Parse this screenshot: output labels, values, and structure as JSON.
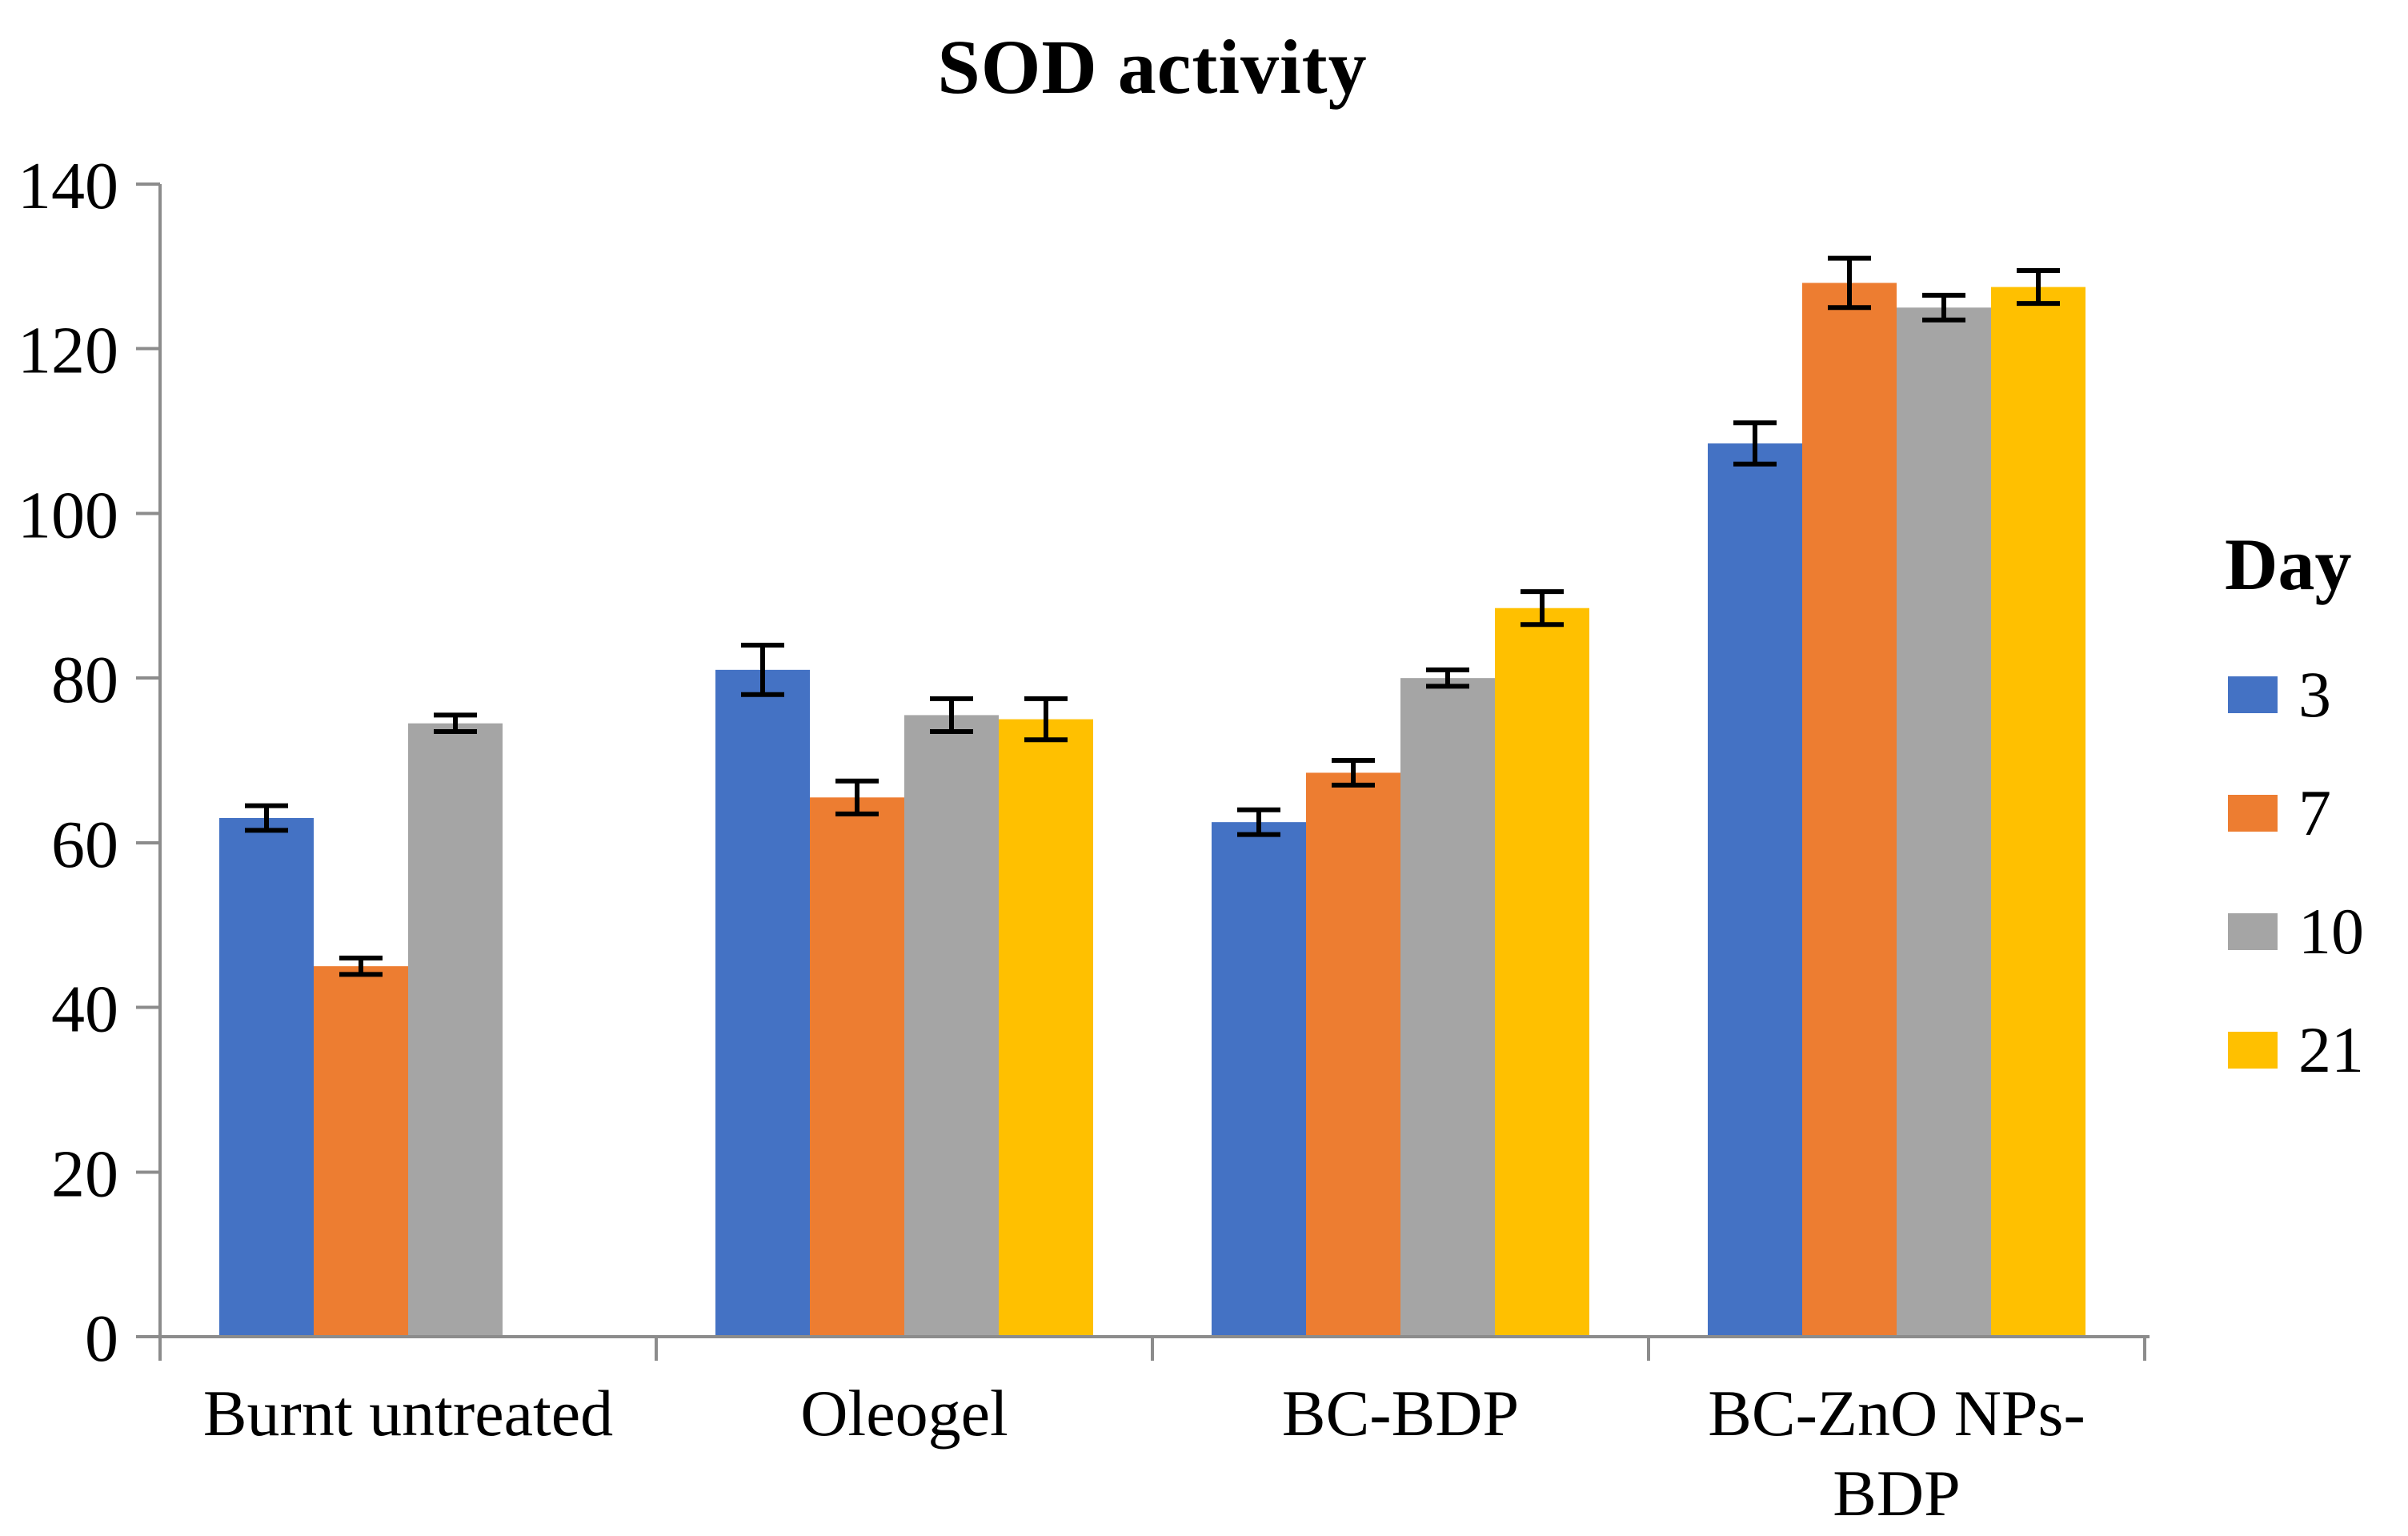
{
  "chart_data": {
    "type": "bar",
    "title": "SOD activity",
    "legend_title": "Day",
    "legend_position": "right",
    "grid": false,
    "categories": [
      "Burnt untreated",
      "Oleogel",
      "BC-BDP",
      "BC-ZnO NPs-BDP"
    ],
    "ylim": [
      0,
      140
    ],
    "ytick_step": 20,
    "yticks": [
      0,
      20,
      40,
      60,
      80,
      100,
      120,
      140
    ],
    "xlabel": "",
    "ylabel": "",
    "axis_color": "#8c8c8c",
    "error_bar_color": "#000000",
    "text_color": "#000000",
    "error_bars": true,
    "series": [
      {
        "name": "3",
        "color": "#4472C4",
        "values": [
          63,
          81,
          62.5,
          108.5
        ],
        "errors": [
          1.5,
          3,
          1.5,
          2.5
        ]
      },
      {
        "name": "7",
        "color": "#ED7D31",
        "values": [
          45,
          65.5,
          68.5,
          128
        ],
        "errors": [
          1,
          2,
          1.5,
          3
        ]
      },
      {
        "name": "10",
        "color": "#A5A5A5",
        "values": [
          74.5,
          75.5,
          80,
          125
        ],
        "errors": [
          1,
          2,
          1,
          1.5
        ]
      },
      {
        "name": "21",
        "color": "#FFC000",
        "values": [
          null,
          75,
          88.5,
          127.5
        ],
        "errors": [
          null,
          2.5,
          2,
          2
        ]
      }
    ]
  }
}
